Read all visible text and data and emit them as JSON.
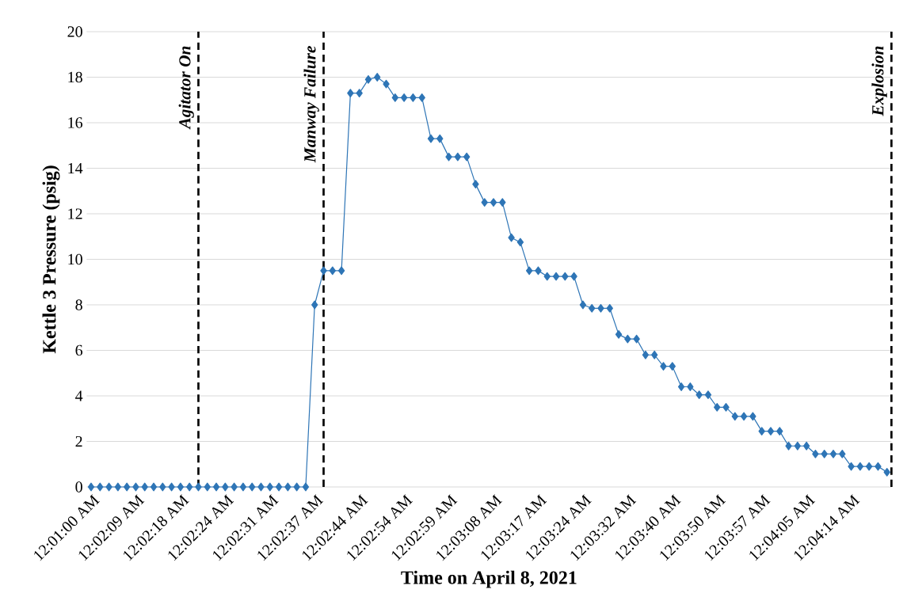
{
  "chart_data": {
    "type": "line",
    "xlabel": "Time on April 8, 2021",
    "ylabel": "Kettle 3 Pressure (psig)",
    "categories": [
      "12:01:00 AM",
      null,
      null,
      null,
      null,
      "12:02:09 AM",
      null,
      null,
      null,
      null,
      "12:02:18 AM",
      null,
      null,
      null,
      null,
      "12:02:24 AM",
      null,
      null,
      null,
      null,
      "12:02:31 AM",
      null,
      null,
      null,
      null,
      "12:02:37 AM",
      null,
      null,
      null,
      null,
      "12:02:44 AM",
      null,
      null,
      null,
      null,
      "12:02:54 AM",
      null,
      null,
      null,
      null,
      "12:02:59 AM",
      null,
      null,
      null,
      null,
      "12:03:08 AM",
      null,
      null,
      null,
      null,
      "12:03:17 AM",
      null,
      null,
      null,
      null,
      "12:03:24 AM",
      null,
      null,
      null,
      null,
      "12:03:32 AM",
      null,
      null,
      null,
      null,
      "12:03:40 AM",
      null,
      null,
      null,
      null,
      "12:03:50 AM",
      null,
      null,
      null,
      null,
      "12:03:57 AM",
      null,
      null,
      null,
      null,
      "12:04:05 AM",
      null,
      null,
      null,
      null,
      "12:04:14 AM",
      null,
      null,
      null,
      null
    ],
    "values": [
      0,
      0,
      0,
      0,
      0,
      0,
      0,
      0,
      0,
      0,
      0,
      0,
      0,
      0,
      0,
      0,
      0,
      0,
      0,
      0,
      0,
      0,
      0,
      0,
      0,
      8,
      9.5,
      9.5,
      9.5,
      17.3,
      17.3,
      17.9,
      18,
      17.7,
      17.1,
      17.1,
      17.1,
      17.1,
      15.3,
      15.3,
      14.5,
      14.5,
      14.5,
      13.3,
      12.5,
      12.5,
      12.5,
      10.95,
      10.75,
      9.5,
      9.5,
      9.25,
      9.25,
      9.25,
      9.25,
      8,
      7.85,
      7.85,
      7.85,
      6.7,
      6.5,
      6.5,
      5.8,
      5.8,
      5.3,
      5.3,
      4.4,
      4.4,
      4.05,
      4.05,
      3.5,
      3.5,
      3.1,
      3.1,
      3.1,
      2.45,
      2.45,
      2.45,
      1.8,
      1.8,
      1.8,
      1.45,
      1.45,
      1.45,
      1.45,
      0.9,
      0.9,
      0.9,
      0.9,
      0.65
    ],
    "color": "#2e75b6",
    "marker": "diamond",
    "line_style": "solid",
    "ylim": [
      0,
      20
    ],
    "yticks": [
      0,
      2,
      4,
      6,
      8,
      10,
      12,
      14,
      16,
      18,
      20
    ],
    "grid": "y",
    "annotations": [
      "Agitator On",
      "Manway Failure",
      "Explosion"
    ]
  }
}
